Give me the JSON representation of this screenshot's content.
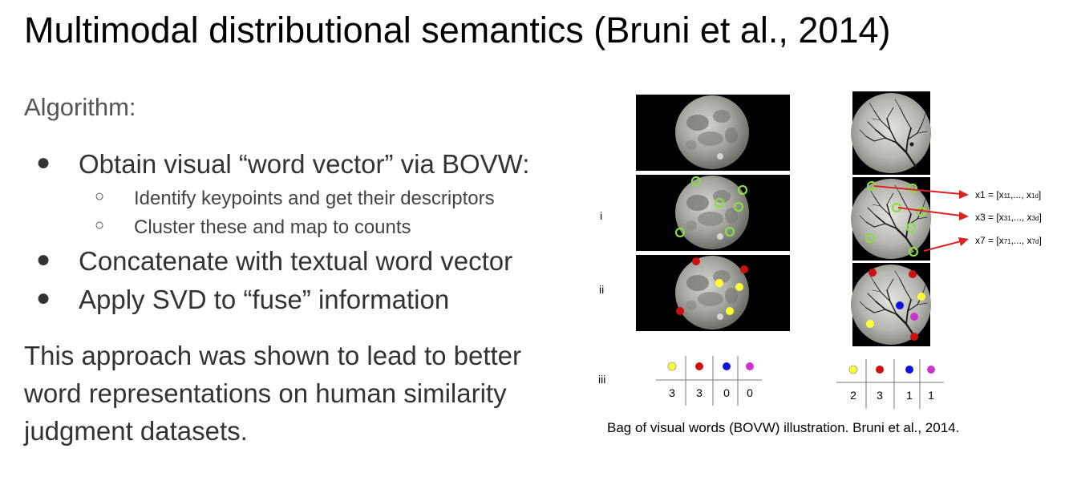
{
  "title": "Multimodal distributional semantics (Bruni et al., 2014)",
  "algorithm_label": "Algorithm:",
  "bullets": [
    {
      "text": "Obtain visual “word vector” via BOVW:",
      "subitems": [
        "Identify keypoints and get their descriptors",
        "Cluster these and map to counts"
      ]
    },
    {
      "text": "Concatenate with textual word vector",
      "subitems": []
    },
    {
      "text": "Apply SVD to “fuse” information",
      "subitems": []
    }
  ],
  "conclusion": "This approach was shown to lead to better word representations on human similarity judgment datasets.",
  "figure": {
    "row_labels": [
      "i",
      "ii",
      "iii"
    ],
    "vector_labels": [
      "x1 = [x11,..., x1d]",
      "x3 = [x31,..., x3d]",
      "x7 = [x71,..., x7d]"
    ],
    "colors": {
      "yellow": "#ffff33",
      "red": "#cc1111",
      "blue": "#1111dd",
      "magenta": "#cc33cc",
      "keypoint": "#88dd44",
      "arrow": "#dd2222"
    },
    "histogram_left": {
      "symbols": [
        "yellow",
        "red",
        "blue",
        "magenta"
      ],
      "counts": [
        "3",
        "3",
        "0",
        "0"
      ]
    },
    "histogram_right": {
      "symbols": [
        "yellow",
        "red",
        "blue",
        "magenta"
      ],
      "counts": [
        "2",
        "3",
        "1",
        "1"
      ]
    },
    "caption": "Bag of visual words (BOVW) illustration. Bruni et al., 2014."
  }
}
